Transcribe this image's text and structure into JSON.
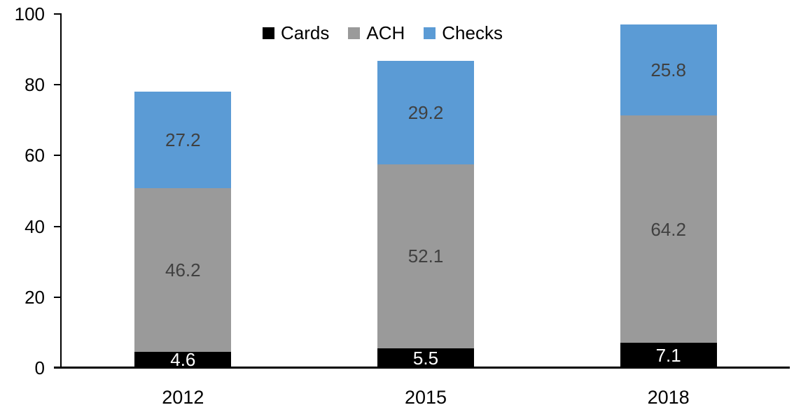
{
  "chart_data": {
    "type": "bar",
    "stacked": true,
    "title": "",
    "xlabel": "",
    "ylabel": "",
    "categories": [
      "2012",
      "2015",
      "2018"
    ],
    "series": [
      {
        "name": "Cards",
        "color": "#000000",
        "label_color": "#ffffff",
        "values": [
          4.6,
          5.5,
          7.1
        ]
      },
      {
        "name": "ACH",
        "color": "#9a9a9a",
        "label_color": "#404040",
        "values": [
          46.2,
          52.1,
          64.2
        ]
      },
      {
        "name": "Checks",
        "color": "#5b9bd5",
        "label_color": "#404040",
        "values": [
          27.2,
          29.2,
          25.8
        ]
      }
    ],
    "ylim": [
      0,
      100
    ],
    "yticks": [
      0,
      20,
      40,
      60,
      80,
      100
    ],
    "legend_position": "top-center",
    "grid": false,
    "data_labels": true,
    "axis_color": "#000000"
  }
}
